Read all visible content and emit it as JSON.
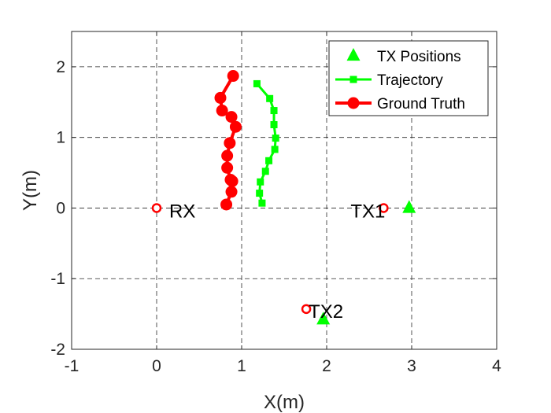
{
  "chart_data": {
    "type": "line",
    "xlabel": "X(m)",
    "ylabel": "Y(m)",
    "xlim": [
      -1,
      4
    ],
    "ylim": [
      -2,
      2.5
    ],
    "xticks": [
      -1,
      0,
      1,
      2,
      3,
      4
    ],
    "yticks": [
      -2,
      -1,
      0,
      1,
      2
    ],
    "xtick_labels": [
      "-1",
      "0",
      "1",
      "2",
      "3",
      "4"
    ],
    "ytick_labels": [
      "-2",
      "-1",
      "0",
      "1",
      "2"
    ],
    "grid": true,
    "grid_style": "dashed",
    "legend_position": "top-right",
    "legend": [
      {
        "label": "TX Positions",
        "marker": "triangle",
        "color": "#00ff00",
        "line": false
      },
      {
        "label": "Trajectory",
        "marker": "square",
        "color": "#00ff00",
        "line": true
      },
      {
        "label": "Ground Truth",
        "marker": "circle",
        "color": "#ff0000",
        "line": true
      }
    ],
    "series": [
      {
        "name": "Trajectory",
        "color": "#00ff00",
        "marker": "square",
        "x": [
          1.18,
          1.33,
          1.38,
          1.38,
          1.4,
          1.39,
          1.32,
          1.28,
          1.22,
          1.21,
          1.24
        ],
        "y": [
          1.76,
          1.55,
          1.38,
          1.18,
          0.99,
          0.83,
          0.67,
          0.52,
          0.37,
          0.21,
          0.07
        ]
      },
      {
        "name": "Ground Truth",
        "color": "#ff0000",
        "marker": "circle",
        "x": [
          0.9,
          0.75,
          0.77,
          0.88,
          0.93,
          0.86,
          0.83,
          0.83,
          0.87,
          0.89,
          0.88,
          0.82
        ],
        "y": [
          1.87,
          1.56,
          1.38,
          1.29,
          1.15,
          0.92,
          0.74,
          0.57,
          0.4,
          0.38,
          0.23,
          0.05
        ]
      }
    ],
    "tx_positions": {
      "name": "TX Positions",
      "color": "#00ff00",
      "marker": "triangle",
      "x": [
        2.97,
        1.96
      ],
      "y": [
        0.0,
        -1.58
      ]
    },
    "points": [
      {
        "label": "RX",
        "x": 0.0,
        "y": 0.0,
        "color": "#ff0000"
      },
      {
        "label": "TX1",
        "x": 2.67,
        "y": 0.0,
        "color": "#ff0000"
      },
      {
        "label": "TX2",
        "x": 1.76,
        "y": -1.43,
        "color": "#ff0000"
      }
    ]
  }
}
